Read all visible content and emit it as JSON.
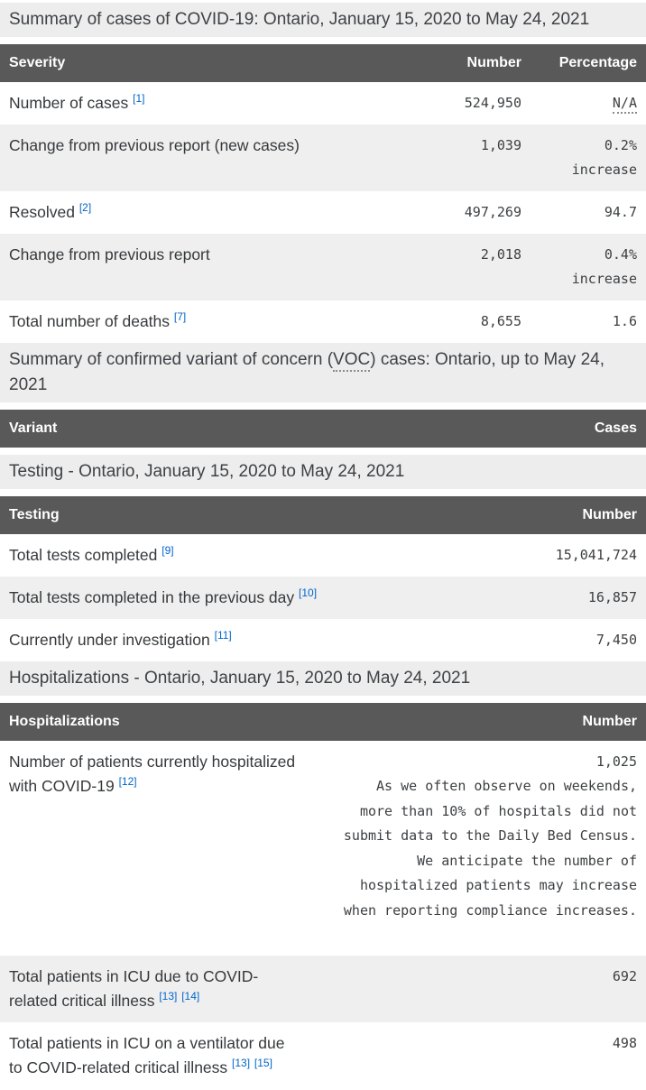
{
  "cases_section": {
    "caption": "Summary of cases of COVID-19: Ontario, January 15, 2020 to May 24, 2021",
    "columns": {
      "severity": "Severity",
      "number": "Number",
      "percentage": "Percentage"
    },
    "rows": [
      {
        "label": "Number of cases",
        "ref1": "[1]",
        "number": "524,950",
        "pct": "N/A"
      },
      {
        "label": "Change from previous report (new cases)",
        "number": "1,039",
        "pct": "0.2%",
        "pct2": "increase"
      },
      {
        "label": "Resolved",
        "ref1": "[2]",
        "number": "497,269",
        "pct": "94.7"
      },
      {
        "label": "Change from previous report",
        "number": "2,018",
        "pct": "0.4%",
        "pct2": "increase"
      },
      {
        "label": "Total number of deaths",
        "ref1": "[7]",
        "number": "8,655",
        "pct": "1.6"
      }
    ]
  },
  "voc_section": {
    "caption_pre": "Summary of confirmed variant of concern (",
    "caption_abbr": "VOC",
    "caption_post": ") cases: Ontario, up to May 24, 2021",
    "columns": {
      "variant": "Variant",
      "cases": "Cases"
    }
  },
  "testing_section": {
    "caption": "Testing - Ontario, January 15, 2020 to May 24, 2021",
    "columns": {
      "testing": "Testing",
      "number": "Number"
    },
    "rows": [
      {
        "label": "Total tests completed",
        "ref1": "[9]",
        "number": "15,041,724"
      },
      {
        "label": "Total tests completed in the previous day",
        "ref1": "[10]",
        "number": "16,857"
      },
      {
        "label": "Currently under investigation",
        "ref1": "[11]",
        "number": "7,450"
      }
    ]
  },
  "hospitalizations_section": {
    "caption": "Hospitalizations - Ontario, January 15, 2020 to May 24, 2021",
    "columns": {
      "hospitalizations": "Hospitalizations",
      "number": "Number"
    },
    "rows": [
      {
        "label": "Number of patients currently hospitalized with COVID-19",
        "ref1": "[12]",
        "number": "1,025",
        "note": "As we often observe on weekends, more than 10% of hospitals did not submit data to the Daily Bed Census. We anticipate the number of hospitalized patients may increase when reporting compliance increases."
      },
      {
        "label": "Total patients in ICU due to COVID-related critical illness",
        "ref1": "[13]",
        "ref2": "[14]",
        "number": "692"
      },
      {
        "label": "Total patients in ICU on a ventilator due to COVID-related critical illness",
        "ref1": "[13]",
        "ref2": "[15]",
        "number": "498"
      }
    ]
  },
  "colors": {
    "header_bg": "#595959",
    "header_text": "#ffffff",
    "caption_bg": "#ededed",
    "alt_row_bg": "#efefef",
    "link_blue": "#0066cc",
    "body_text": "#36393c"
  }
}
